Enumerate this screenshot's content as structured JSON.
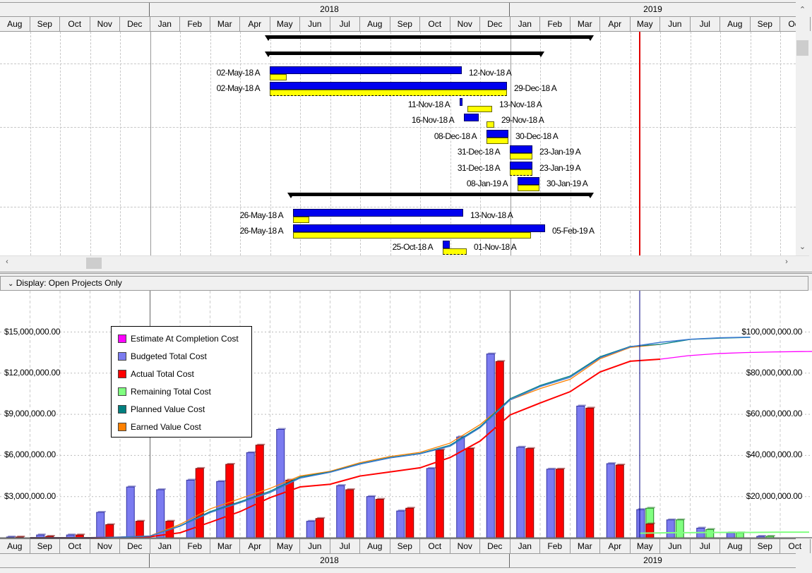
{
  "timescale": {
    "years": [
      "2018",
      "2019"
    ],
    "months": [
      "Aug",
      "Sep",
      "Oct",
      "Nov",
      "Dec",
      "Jan",
      "Feb",
      "Mar",
      "Apr",
      "May",
      "Jun",
      "Jul",
      "Aug",
      "Sep",
      "Oct",
      "Nov",
      "Dec",
      "Jan",
      "Feb",
      "Mar",
      "Apr",
      "May",
      "Jun",
      "Jul",
      "Aug",
      "Sep",
      "Oct"
    ]
  },
  "gantt_rows": [
    {
      "start": "",
      "finish": ""
    },
    {
      "start": "",
      "finish": ""
    },
    {
      "start": "02-May-18 A",
      "finish": "12-Nov-18 A"
    },
    {
      "start": "02-May-18 A",
      "finish": "29-Dec-18 A"
    },
    {
      "start": "11-Nov-18 A",
      "finish": "13-Nov-18 A"
    },
    {
      "start": "16-Nov-18 A",
      "finish": "29-Nov-18 A"
    },
    {
      "start": "08-Dec-18 A",
      "finish": "30-Dec-18 A"
    },
    {
      "start": "31-Dec-18 A",
      "finish": "23-Jan-19 A"
    },
    {
      "start": "31-Dec-18 A",
      "finish": "23-Jan-19 A"
    },
    {
      "start": "08-Jan-19 A",
      "finish": "30-Jan-19 A"
    },
    {
      "start": "",
      "finish": ""
    },
    {
      "start": "26-May-18 A",
      "finish": "13-Nov-18 A"
    },
    {
      "start": "26-May-18 A",
      "finish": "05-Feb-19 A"
    },
    {
      "start": "25-Oct-18 A",
      "finish": "01-Nov-18 A"
    }
  ],
  "display_bar": {
    "label": "Display: Open Projects Only"
  },
  "chart_data": {
    "type": "bar",
    "categories": [
      "Aug-17",
      "Sep-17",
      "Oct-17",
      "Nov-17",
      "Dec-17",
      "Jan-18",
      "Feb-18",
      "Mar-18",
      "Apr-18",
      "May-18",
      "Jun-18",
      "Jul-18",
      "Aug-18",
      "Sep-18",
      "Oct-18",
      "Nov-18",
      "Dec-18",
      "Jan-19",
      "Feb-19",
      "Mar-19",
      "Apr-19",
      "May-19",
      "Jun-19",
      "Jul-19",
      "Aug-19",
      "Sep-19",
      "Oct-19"
    ],
    "left_axis": {
      "ticks": [
        "$3,000,000.00",
        "$6,000,000.00",
        "$9,000,000.00",
        "$12,000,000.00",
        "$15,000,000.00"
      ],
      "tick_values": [
        3,
        6,
        9,
        12,
        15
      ],
      "range": [
        0,
        18
      ],
      "unit": "$M"
    },
    "right_axis": {
      "ticks": [
        "$20,000,000.00",
        "$40,000,000.00",
        "$60,000,000.00",
        "$80,000,000.00",
        "$100,000,000.00"
      ],
      "tick_values": [
        20,
        40,
        60,
        80,
        100
      ],
      "range": [
        0,
        120
      ],
      "unit": "$M"
    },
    "legend": [
      {
        "label": "Estimate At Completion Cost",
        "color": "#ff00ff"
      },
      {
        "label": "Budgeted Total Cost",
        "color": "#7b7bf0"
      },
      {
        "label": "Actual Total Cost",
        "color": "#ff0000"
      },
      {
        "label": "Remaining Total Cost",
        "color": "#80ff80"
      },
      {
        "label": "Planned Value Cost",
        "color": "#007f7f"
      },
      {
        "label": "Earned Value Cost",
        "color": "#ff8000"
      }
    ],
    "bars": {
      "budgeted": [
        0.05,
        0.2,
        0.2,
        1.85,
        3.7,
        3.5,
        4.2,
        4.1,
        6.2,
        7.9,
        1.2,
        3.8,
        3.0,
        1.95,
        5.05,
        7.35,
        13.4,
        6.6,
        5.0,
        9.6,
        5.4,
        2.05,
        1.3,
        0.7,
        0.35,
        0.1,
        0
      ],
      "actual": [
        0.05,
        0.1,
        0.2,
        0.95,
        1.2,
        1.2,
        5.05,
        5.35,
        6.75,
        4.2,
        1.4,
        3.5,
        2.8,
        2.15,
        6.4,
        6.5,
        12.85,
        6.5,
        5.0,
        9.45,
        5.3,
        1.0,
        0,
        0,
        0,
        0,
        0
      ],
      "remaining": [
        0,
        0,
        0,
        0,
        0,
        0,
        0,
        0,
        0,
        0,
        0,
        0,
        0,
        0,
        0,
        0,
        0,
        0,
        0,
        0,
        0,
        2.15,
        1.3,
        0.6,
        0.35,
        0.1,
        0
      ]
    },
    "lines": {
      "planned_value_cum": [
        0,
        0,
        0,
        0.3,
        0.8,
        5.8,
        12.7,
        17.5,
        22.6,
        29.5,
        32,
        36,
        39,
        41,
        45,
        54,
        67.6,
        74,
        78.6,
        88,
        93,
        94,
        96.4,
        97,
        97.4
      ],
      "earned_value_cum": [
        0,
        0,
        0,
        0.3,
        0.9,
        6.5,
        14,
        19,
        24,
        30,
        32.3,
        36.5,
        39.5,
        41.5,
        46,
        55,
        67,
        72.5,
        77,
        87,
        92.5,
        94
      ],
      "budgeted_cum": [
        0,
        0,
        0,
        0.3,
        0.8,
        5.6,
        12.2,
        17,
        22,
        29,
        31.8,
        35.8,
        38.8,
        40.8,
        44.5,
        53.5,
        67,
        73.5,
        78,
        87.5,
        92.8,
        95,
        96.5,
        97.2,
        97.5
      ],
      "actual_cum": [
        0,
        0,
        0,
        0.2,
        0.5,
        2.4,
        7.5,
        12.7,
        19.5,
        24.7,
        26,
        30,
        32,
        34,
        39,
        47,
        59.7,
        65.5,
        71,
        80.6,
        85.8,
        86.8
      ],
      "eac_cum": [
        86.8,
        88.5,
        89.5,
        90,
        90.3,
        90.5,
        90.6
      ],
      "remaining_cum": [
        1.5,
        1.7,
        1.8,
        1.9,
        1.9,
        2,
        2
      ]
    }
  }
}
